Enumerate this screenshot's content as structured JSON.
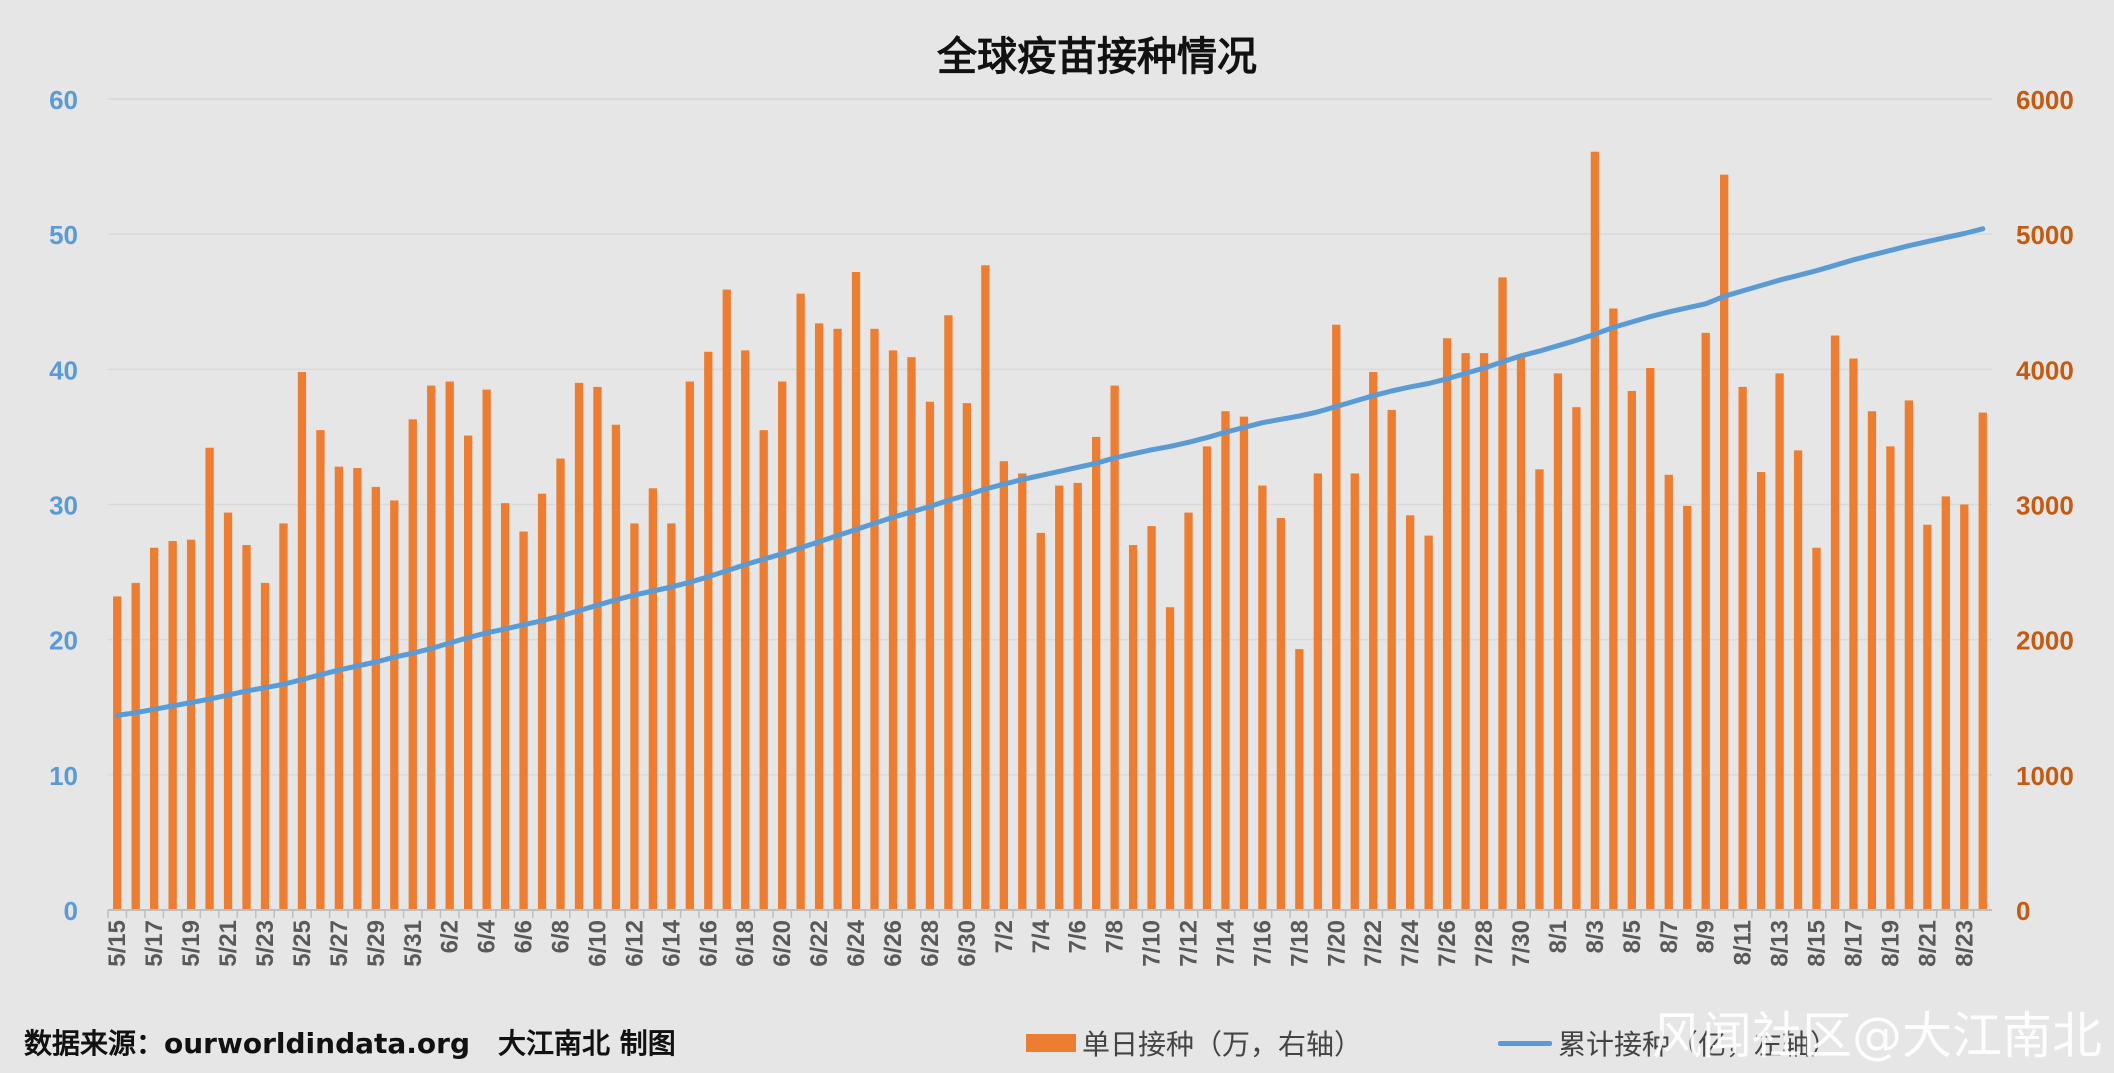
{
  "title": "全球疫苗接种情况",
  "source": "数据来源：ourworldindata.org",
  "credit": "大江南北 制图",
  "watermark": "风闻社区@大江南北",
  "colors": {
    "bar": "#ed7d31",
    "line": "#5b9bd5",
    "grid": "#d9d9d9",
    "background": "#e6e6e6"
  },
  "chart_data": {
    "type": "bar+line",
    "title": "全球疫苗接种情况",
    "categories": [
      "5/15",
      "5/16",
      "5/17",
      "5/18",
      "5/19",
      "5/20",
      "5/21",
      "5/22",
      "5/23",
      "5/24",
      "5/25",
      "5/26",
      "5/27",
      "5/28",
      "5/29",
      "5/30",
      "5/31",
      "6/1",
      "6/2",
      "6/3",
      "6/4",
      "6/5",
      "6/6",
      "6/7",
      "6/8",
      "6/9",
      "6/10",
      "6/11",
      "6/12",
      "6/13",
      "6/14",
      "6/15",
      "6/16",
      "6/17",
      "6/18",
      "6/19",
      "6/20",
      "6/21",
      "6/22",
      "6/23",
      "6/24",
      "6/25",
      "6/26",
      "6/27",
      "6/28",
      "6/29",
      "6/30",
      "7/1",
      "7/2",
      "7/3",
      "7/4",
      "7/5",
      "7/6",
      "7/7",
      "7/8",
      "7/9",
      "7/10",
      "7/11",
      "7/12",
      "7/13",
      "7/14",
      "7/15",
      "7/16",
      "7/17",
      "7/18",
      "7/19",
      "7/20",
      "7/21",
      "7/22",
      "7/23",
      "7/24",
      "7/25",
      "7/26",
      "7/27",
      "7/28",
      "7/29",
      "7/30",
      "7/31",
      "8/1",
      "8/2",
      "8/3",
      "8/4",
      "8/5",
      "8/6",
      "8/7",
      "8/8",
      "8/9",
      "8/10",
      "8/11",
      "8/12",
      "8/13",
      "8/14",
      "8/15",
      "8/16",
      "8/17",
      "8/18",
      "8/19",
      "8/20",
      "8/21",
      "8/22",
      "8/23",
      "8/24"
    ],
    "tick_labels": [
      "5/15",
      "5/17",
      "5/19",
      "5/21",
      "5/23",
      "5/25",
      "5/27",
      "5/29",
      "5/31",
      "6/2",
      "6/4",
      "6/6",
      "6/8",
      "6/10",
      "6/12",
      "6/14",
      "6/16",
      "6/18",
      "6/20",
      "6/22",
      "6/24",
      "6/26",
      "6/28",
      "6/30",
      "7/2",
      "7/4",
      "7/6",
      "7/8",
      "7/10",
      "7/12",
      "7/14",
      "7/16",
      "7/18",
      "7/20",
      "7/22",
      "7/24",
      "7/26",
      "7/28",
      "7/30",
      "8/1",
      "8/3",
      "8/5",
      "8/7",
      "8/9",
      "8/11",
      "8/13",
      "8/15",
      "8/17",
      "8/19",
      "8/21",
      "8/23"
    ],
    "series": [
      {
        "name": "单日接种（万，右轴）",
        "type": "bar",
        "axis": "right",
        "values": [
          2320,
          2420,
          2680,
          2730,
          2740,
          3420,
          2940,
          2700,
          2420,
          2860,
          3980,
          3550,
          3280,
          3270,
          3130,
          3030,
          3630,
          3880,
          3910,
          3510,
          3850,
          3010,
          2800,
          3080,
          3340,
          3900,
          3870,
          3590,
          2860,
          3120,
          2860,
          3910,
          4130,
          4590,
          4140,
          3550,
          3910,
          4560,
          4340,
          4300,
          4720,
          4300,
          4140,
          4090,
          3760,
          4400,
          3750,
          4770,
          3320,
          3230,
          2790,
          3140,
          3160,
          3500,
          3880,
          2700,
          2840,
          2240,
          2940,
          3430,
          3690,
          3650,
          3140,
          2900,
          1930,
          3230,
          4330,
          3230,
          3980,
          3700,
          2920,
          2770,
          4230,
          4120,
          4120,
          4680,
          4100,
          3260,
          3970,
          3720,
          5610,
          4450,
          3840,
          4010,
          3220,
          2990,
          4270,
          5440,
          3870,
          3240,
          3970,
          3400,
          2680,
          4250,
          4080,
          3690,
          3430,
          3770,
          2850,
          3060,
          3000,
          3680
        ]
      },
      {
        "name": "累计接种（亿，左轴）",
        "type": "line",
        "axis": "left",
        "values": [
          14.4,
          14.6,
          14.85,
          15.1,
          15.35,
          15.6,
          15.9,
          16.2,
          16.45,
          16.7,
          17.05,
          17.4,
          17.75,
          18.05,
          18.35,
          18.7,
          19.0,
          19.35,
          19.75,
          20.15,
          20.5,
          20.8,
          21.1,
          21.4,
          21.75,
          22.15,
          22.55,
          22.95,
          23.3,
          23.6,
          23.9,
          24.25,
          24.65,
          25.1,
          25.55,
          25.95,
          26.35,
          26.8,
          27.25,
          27.7,
          28.15,
          28.6,
          29.05,
          29.45,
          29.85,
          30.3,
          30.7,
          31.15,
          31.5,
          31.85,
          32.15,
          32.45,
          32.75,
          33.05,
          33.45,
          33.75,
          34.05,
          34.3,
          34.6,
          34.95,
          35.35,
          35.7,
          36.05,
          36.3,
          36.55,
          36.85,
          37.25,
          37.65,
          38.05,
          38.4,
          38.7,
          38.95,
          39.3,
          39.7,
          40.1,
          40.55,
          41.0,
          41.35,
          41.75,
          42.15,
          42.6,
          43.1,
          43.5,
          43.9,
          44.25,
          44.55,
          44.85,
          45.4,
          45.8,
          46.2,
          46.6,
          46.95,
          47.3,
          47.7,
          48.1,
          48.45,
          48.8,
          49.15,
          49.45,
          49.75,
          50.05,
          50.4
        ]
      }
    ],
    "left_axis": {
      "min": 0,
      "max": 60,
      "ticks": [
        0,
        10,
        20,
        30,
        40,
        50,
        60
      ],
      "color": "#5b9bd5"
    },
    "right_axis": {
      "min": 0,
      "max": 6000,
      "ticks": [
        0,
        1000,
        2000,
        3000,
        4000,
        5000,
        6000
      ],
      "color": "#c55a11"
    },
    "grid": true,
    "legend": "bottom"
  }
}
